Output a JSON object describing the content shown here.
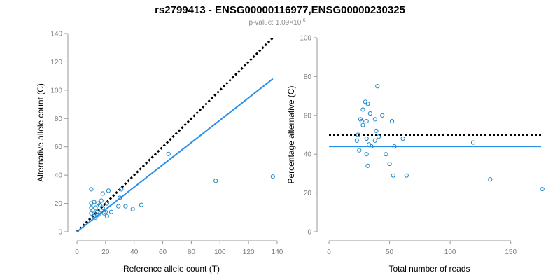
{
  "header": {
    "title": "rs2799413 - ENSG00000116977,ENSG00000230325",
    "pvalue_prefix": "p-value: 1.09×10",
    "pvalue_exponent": "-6"
  },
  "colors": {
    "points": "#1b87c9",
    "fit_line": "#2a8fe8",
    "reference_line": "#000000"
  },
  "chart_data": [
    {
      "type": "scatter",
      "xlabel": "Reference allele count (T)",
      "ylabel": "Alternative allele count (C)",
      "xlim": [
        0,
        140
      ],
      "ylim": [
        0,
        140
      ],
      "xticks": [
        0,
        20,
        40,
        60,
        80,
        100,
        120,
        140
      ],
      "yticks": [
        0,
        20,
        40,
        60,
        80,
        100,
        120,
        140
      ],
      "grid": false,
      "points": [
        [
          10,
          30
        ],
        [
          10,
          20
        ],
        [
          12,
          21
        ],
        [
          10,
          17
        ],
        [
          13,
          17
        ],
        [
          11,
          15
        ],
        [
          10,
          13
        ],
        [
          14,
          14
        ],
        [
          15,
          20
        ],
        [
          17,
          22
        ],
        [
          15,
          12
        ],
        [
          17,
          15
        ],
        [
          18,
          17
        ],
        [
          18,
          27
        ],
        [
          20,
          14
        ],
        [
          21,
          20
        ],
        [
          22,
          29
        ],
        [
          21,
          11
        ],
        [
          24,
          14
        ],
        [
          30,
          24
        ],
        [
          31,
          30
        ],
        [
          34,
          18
        ],
        [
          29,
          18
        ],
        [
          39,
          16
        ],
        [
          45,
          19
        ],
        [
          64,
          55
        ],
        [
          97,
          36
        ],
        [
          137,
          39
        ],
        [
          12,
          11
        ],
        [
          19,
          13
        ],
        [
          16,
          19
        ],
        [
          13,
          10
        ]
      ],
      "lines": [
        {
          "name": "",
          "style": "dotted",
          "color": "#000000",
          "x": [
            0,
            137
          ],
          "y": [
            0,
            137
          ]
        },
        {
          "name": "",
          "style": "solid",
          "color": "#2a8fe8",
          "x": [
            0,
            137
          ],
          "y": [
            0,
            108
          ]
        }
      ]
    },
    {
      "type": "scatter",
      "xlabel": "Total number of reads",
      "ylabel": "Percentage alternative (C)",
      "xlim": [
        0,
        175
      ],
      "ylim": [
        0,
        100
      ],
      "xticks": [
        0,
        50,
        100,
        150
      ],
      "yticks": [
        0,
        20,
        40,
        60,
        80,
        100
      ],
      "grid": false,
      "points": [
        [
          23,
          47
        ],
        [
          24,
          50
        ],
        [
          25,
          42
        ],
        [
          26,
          58
        ],
        [
          27,
          57
        ],
        [
          28,
          63
        ],
        [
          28,
          55
        ],
        [
          30,
          67
        ],
        [
          31,
          57
        ],
        [
          31,
          48
        ],
        [
          32,
          66
        ],
        [
          33,
          45
        ],
        [
          32,
          34
        ],
        [
          31,
          40
        ],
        [
          34,
          61
        ],
        [
          35,
          44
        ],
        [
          38,
          47
        ],
        [
          39,
          52
        ],
        [
          40,
          75
        ],
        [
          38,
          58
        ],
        [
          41,
          49
        ],
        [
          44,
          60
        ],
        [
          47,
          40
        ],
        [
          50,
          35
        ],
        [
          53,
          29
        ],
        [
          54,
          44
        ],
        [
          61,
          48
        ],
        [
          64,
          29
        ],
        [
          119,
          46
        ],
        [
          133,
          27
        ],
        [
          176,
          22
        ],
        [
          52,
          57
        ]
      ],
      "lines": [
        {
          "name": "",
          "style": "dotted",
          "color": "#000000",
          "x": [
            0,
            175
          ],
          "y": [
            50,
            50
          ]
        },
        {
          "name": "",
          "style": "solid",
          "color": "#2a8fe8",
          "x": [
            0,
            175
          ],
          "y": [
            44,
            44
          ]
        }
      ]
    }
  ]
}
